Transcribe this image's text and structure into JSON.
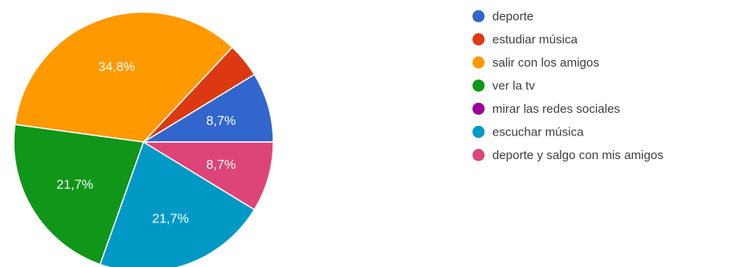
{
  "chart_data": {
    "type": "pie",
    "categories": [
      "deporte",
      "estudiar música",
      "salir con los amigos",
      "ver la tv",
      "mirar las redes sociales",
      "escuchar música",
      "deporte y salgo con mis amigos"
    ],
    "values": [
      8.7,
      4.3,
      34.8,
      21.7,
      0,
      21.7,
      8.7
    ],
    "slice_labels": [
      "8,7%",
      "",
      "34,8%",
      "21,7%",
      "",
      "21,7%",
      "8,7%"
    ],
    "colors": [
      "#3366cc",
      "#dc3912",
      "#ff9900",
      "#109618",
      "#990099",
      "#0099c6",
      "#dd4477"
    ],
    "legend_position": "right",
    "direction": "counterclockwise from 3 o'clock"
  }
}
